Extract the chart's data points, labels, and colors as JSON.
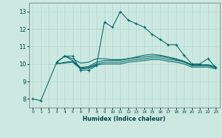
{
  "title": "",
  "xlabel": "Humidex (Indice chaleur)",
  "ylabel": "",
  "background_color": "#cce8e0",
  "grid_color": "#b0d8cc",
  "line_color": "#006666",
  "xlim": [
    -0.5,
    23.5
  ],
  "ylim": [
    7.5,
    13.5
  ],
  "xticks": [
    0,
    1,
    2,
    3,
    4,
    5,
    6,
    7,
    8,
    9,
    10,
    11,
    12,
    13,
    14,
    15,
    16,
    17,
    18,
    19,
    20,
    21,
    22,
    23
  ],
  "yticks": [
    8,
    9,
    10,
    11,
    12,
    13
  ],
  "lines": [
    {
      "x": [
        0,
        1,
        3,
        4,
        5,
        6,
        7,
        8,
        9,
        10,
        11,
        12,
        13,
        14,
        15,
        16,
        17,
        18,
        19,
        20,
        21,
        22,
        23
      ],
      "y": [
        8.0,
        7.9,
        10.1,
        10.45,
        10.45,
        9.65,
        9.65,
        9.9,
        12.4,
        12.1,
        13.0,
        12.5,
        12.3,
        12.1,
        11.7,
        11.4,
        11.1,
        11.1,
        10.5,
        10.0,
        10.0,
        10.3,
        9.8
      ],
      "marker": "+"
    },
    {
      "x": [
        3,
        4,
        5,
        6,
        7,
        8,
        9,
        10,
        11,
        12,
        13,
        14,
        15,
        16,
        17,
        18,
        19,
        20,
        21,
        22,
        23
      ],
      "y": [
        10.1,
        10.45,
        10.3,
        10.05,
        10.1,
        10.3,
        10.3,
        10.25,
        10.25,
        10.3,
        10.4,
        10.5,
        10.55,
        10.5,
        10.4,
        10.3,
        10.15,
        9.95,
        9.95,
        9.95,
        9.85
      ],
      "marker": null
    },
    {
      "x": [
        3,
        4,
        5,
        6,
        7,
        8,
        9,
        10,
        11,
        12,
        13,
        14,
        15,
        16,
        17,
        18,
        19,
        20,
        21,
        22,
        23
      ],
      "y": [
        10.1,
        10.45,
        10.2,
        9.8,
        9.85,
        10.1,
        10.2,
        10.2,
        10.2,
        10.3,
        10.35,
        10.4,
        10.45,
        10.45,
        10.35,
        10.25,
        10.15,
        9.95,
        9.95,
        9.95,
        9.85
      ],
      "marker": null
    },
    {
      "x": [
        3,
        4,
        5,
        6,
        7,
        8,
        9,
        10,
        11,
        12,
        13,
        14,
        15,
        16,
        17,
        18,
        19,
        20,
        21,
        22,
        23
      ],
      "y": [
        10.0,
        10.1,
        10.15,
        9.75,
        9.8,
        10.0,
        10.1,
        10.1,
        10.1,
        10.2,
        10.25,
        10.3,
        10.35,
        10.35,
        10.25,
        10.2,
        10.1,
        9.9,
        9.9,
        9.9,
        9.78
      ],
      "marker": null
    },
    {
      "x": [
        3,
        4,
        5,
        6,
        7,
        8,
        9,
        10,
        11,
        12,
        13,
        14,
        15,
        16,
        17,
        18,
        19,
        20,
        21,
        22,
        23
      ],
      "y": [
        10.0,
        10.05,
        10.1,
        9.72,
        9.75,
        9.95,
        10.0,
        10.0,
        10.0,
        10.1,
        10.15,
        10.2,
        10.25,
        10.25,
        10.15,
        10.1,
        10.0,
        9.82,
        9.82,
        9.82,
        9.72
      ],
      "marker": null
    }
  ]
}
